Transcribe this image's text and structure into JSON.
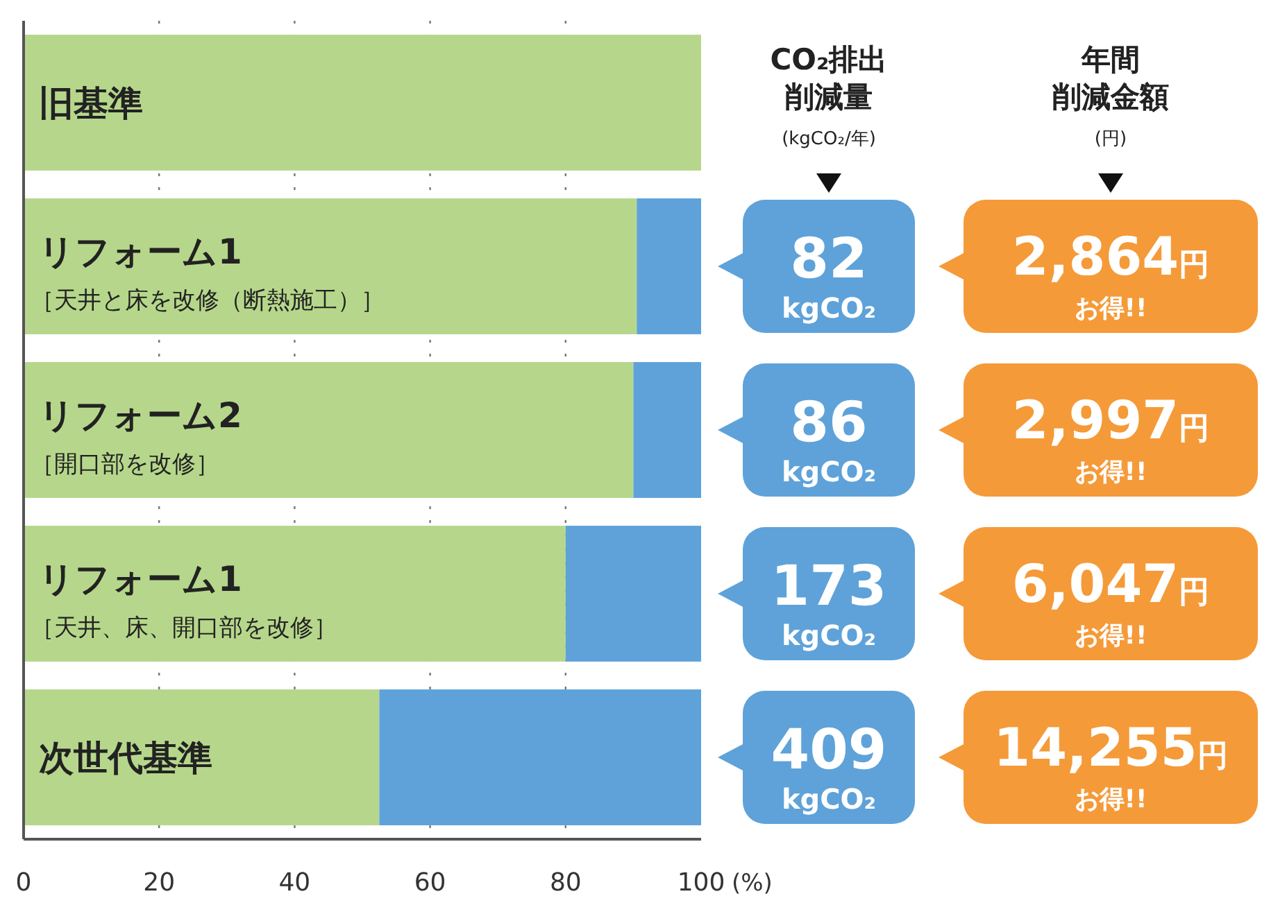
{
  "chart_data": [
    {
      "type": "bar",
      "orientation": "horizontal",
      "stacked": true,
      "categories": [
        "旧基準",
        "リフォーム1\n［天井と床を改修（断熱施工）］",
        "リフォーム2\n［開口部を改修］",
        "リフォーム1\n［天井、床、開口部を改修］",
        "次世代基準"
      ],
      "series": [
        {
          "color": "#b6d78b",
          "values": [
            100,
            90.5,
            90,
            80,
            52.5
          ]
        },
        {
          "color": "#5ea2d9",
          "values": [
            0,
            9.5,
            10,
            20,
            47.5
          ]
        }
      ],
      "xlim": [
        0,
        100
      ],
      "xticks": [
        0,
        20,
        40,
        60,
        80,
        100
      ],
      "xlabel": "(%)",
      "grid": "x"
    },
    {
      "type": "other",
      "annotations": [
        "CO₂排出",
        "削減量",
        "(kgCO₂/年)",
        "年間",
        "削減金額",
        "(円)",
        "82",
        "kgCO₂",
        "2,864",
        "円",
        "お得!!",
        "86",
        "kgCO₂",
        "2,997",
        "円",
        "お得!!",
        "173",
        "kgCO₂",
        "6,047",
        "円",
        "お得!!",
        "409",
        "kgCO₂",
        "14,255",
        "円",
        "お得!!"
      ]
    }
  ]
}
